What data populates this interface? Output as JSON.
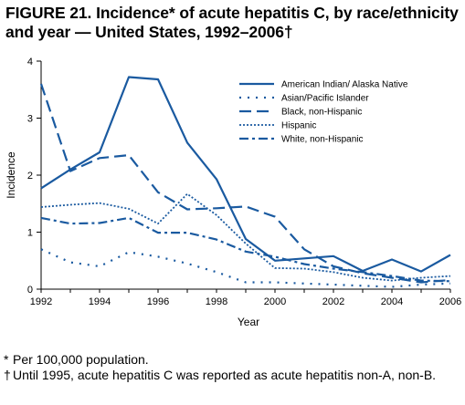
{
  "title": {
    "line1": "FIGURE 21. Incidence* of acute hepatitis C, by race/ethnicity",
    "line2": "and year — United States, 1992–2006†"
  },
  "chart_data": {
    "type": "line",
    "title": "FIGURE 21. Incidence* of acute hepatitis C, by race/ethnicity and year — United States, 1992–2006†",
    "xlabel": "Year",
    "ylabel": "Incidence",
    "xlim": [
      1992,
      2006
    ],
    "ylim": [
      0,
      4
    ],
    "x_ticks": [
      1992,
      1994,
      1996,
      1998,
      2000,
      2002,
      2004,
      2006
    ],
    "y_ticks": [
      0,
      1,
      2,
      3,
      4
    ],
    "grid": false,
    "legend_position": "top-right",
    "x": [
      1992,
      1993,
      1994,
      1995,
      1996,
      1997,
      1998,
      1999,
      2000,
      2001,
      2002,
      2003,
      2004,
      2005,
      2006
    ],
    "series": [
      {
        "name": "American Indian/ Alaska Native",
        "style": "solid",
        "color": "#1a5aa0",
        "values": [
          1.77,
          2.1,
          2.4,
          3.72,
          3.68,
          2.57,
          1.93,
          0.88,
          0.5,
          0.54,
          0.58,
          0.32,
          0.52,
          0.31,
          0.6
        ]
      },
      {
        "name": "Asian/Pacific Islander",
        "style": "dot",
        "color": "#1a5aa0",
        "values": [
          0.7,
          0.47,
          0.4,
          0.65,
          0.57,
          0.45,
          0.3,
          0.12,
          0.12,
          0.1,
          0.08,
          0.06,
          0.04,
          0.08,
          0.1
        ]
      },
      {
        "name": "Black, non-Hispanic",
        "style": "dash",
        "color": "#1a5aa0",
        "values": [
          3.6,
          2.07,
          2.3,
          2.35,
          1.7,
          1.4,
          1.42,
          1.45,
          1.27,
          0.7,
          0.4,
          0.28,
          0.2,
          0.12,
          0.16
        ]
      },
      {
        "name": "Hispanic",
        "style": "fine-dot",
        "color": "#1a5aa0",
        "values": [
          1.44,
          1.48,
          1.51,
          1.41,
          1.15,
          1.67,
          1.3,
          0.8,
          0.37,
          0.36,
          0.3,
          0.2,
          0.15,
          0.2,
          0.23
        ]
      },
      {
        "name": "White, non-Hispanic",
        "style": "dash-dot",
        "color": "#1a5aa0",
        "values": [
          1.25,
          1.15,
          1.16,
          1.25,
          0.99,
          0.99,
          0.87,
          0.66,
          0.57,
          0.44,
          0.36,
          0.3,
          0.23,
          0.15,
          0.14
        ]
      }
    ]
  },
  "footnotes": [
    {
      "mark": "*",
      "text": " Per 100,000 population."
    },
    {
      "mark": "†",
      "text": "Until 1995, acute hepatitis C was reported as acute hepatitis non-A, non-B."
    }
  ]
}
